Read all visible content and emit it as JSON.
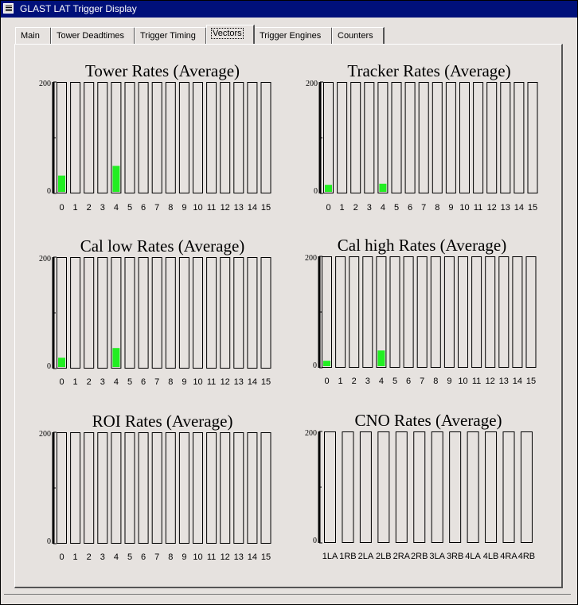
{
  "window": {
    "title": "GLAST LAT Trigger Display"
  },
  "tabs": [
    {
      "label": "Main",
      "active": false
    },
    {
      "label": "Tower Deadtimes",
      "active": false
    },
    {
      "label": "Trigger Timing",
      "active": false
    },
    {
      "label": "Vectors",
      "active": true
    },
    {
      "label": "Trigger Engines",
      "active": false
    },
    {
      "label": "Counters",
      "active": false
    }
  ],
  "colors": {
    "bar_fill": "#22ee22",
    "titlebar": "#00107a",
    "background": "#e6e2df"
  },
  "chart_data": [
    {
      "type": "bar",
      "title": "Tower Rates (Average)",
      "ylim": [
        0,
        200
      ],
      "yticks": [
        "200",
        "0"
      ],
      "categories": [
        "0",
        "1",
        "2",
        "3",
        "4",
        "5",
        "6",
        "7",
        "8",
        "9",
        "10",
        "11",
        "12",
        "13",
        "14",
        "15"
      ],
      "values": [
        30,
        0,
        0,
        0,
        48,
        0,
        0,
        0,
        0,
        0,
        0,
        0,
        0,
        0,
        0,
        0
      ]
    },
    {
      "type": "bar",
      "title": "Tracker Rates (Average)",
      "ylim": [
        0,
        200
      ],
      "yticks": [
        "200",
        "0"
      ],
      "categories": [
        "0",
        "1",
        "2",
        "3",
        "4",
        "5",
        "6",
        "7",
        "8",
        "9",
        "10",
        "11",
        "12",
        "13",
        "14",
        "15"
      ],
      "values": [
        13,
        0,
        0,
        0,
        15,
        0,
        0,
        0,
        0,
        0,
        0,
        0,
        0,
        0,
        0,
        0
      ]
    },
    {
      "type": "bar",
      "title": "Cal low Rates (Average)",
      "ylim": [
        0,
        200
      ],
      "yticks": [
        "200",
        "0"
      ],
      "categories": [
        "0",
        "1",
        "2",
        "3",
        "4",
        "5",
        "6",
        "7",
        "8",
        "9",
        "10",
        "11",
        "12",
        "13",
        "14",
        "15"
      ],
      "values": [
        17,
        0,
        0,
        0,
        35,
        0,
        0,
        0,
        0,
        0,
        0,
        0,
        0,
        0,
        0,
        0
      ]
    },
    {
      "type": "bar",
      "title": "Cal high Rates (Average)",
      "ylim": [
        0,
        200
      ],
      "yticks": [
        "200",
        "0"
      ],
      "categories": [
        "0",
        "1",
        "2",
        "3",
        "4",
        "5",
        "6",
        "7",
        "8",
        "9",
        "10",
        "11",
        "12",
        "13",
        "14",
        "15"
      ],
      "values": [
        10,
        0,
        0,
        0,
        29,
        0,
        0,
        0,
        0,
        0,
        0,
        0,
        0,
        0,
        0,
        0
      ]
    },
    {
      "type": "bar",
      "title": "ROI Rates (Average)",
      "ylim": [
        0,
        200
      ],
      "yticks": [
        "200",
        "0"
      ],
      "categories": [
        "0",
        "1",
        "2",
        "3",
        "4",
        "5",
        "6",
        "7",
        "8",
        "9",
        "10",
        "11",
        "12",
        "13",
        "14",
        "15"
      ],
      "values": [
        0,
        0,
        0,
        0,
        0,
        0,
        0,
        0,
        0,
        0,
        0,
        0,
        0,
        0,
        0,
        0
      ]
    },
    {
      "type": "bar",
      "title": "CNO Rates (Average)",
      "ylim": [
        0,
        200
      ],
      "yticks": [
        "200",
        "0"
      ],
      "categories": [
        "1LA",
        "1RB",
        "2LA",
        "2LB",
        "2RA",
        "2RB",
        "3LA",
        "3RB",
        "4LA",
        "4LB",
        "4RA",
        "4RB"
      ],
      "values": [
        0,
        0,
        0,
        0,
        0,
        0,
        0,
        0,
        0,
        0,
        0,
        0
      ]
    }
  ]
}
